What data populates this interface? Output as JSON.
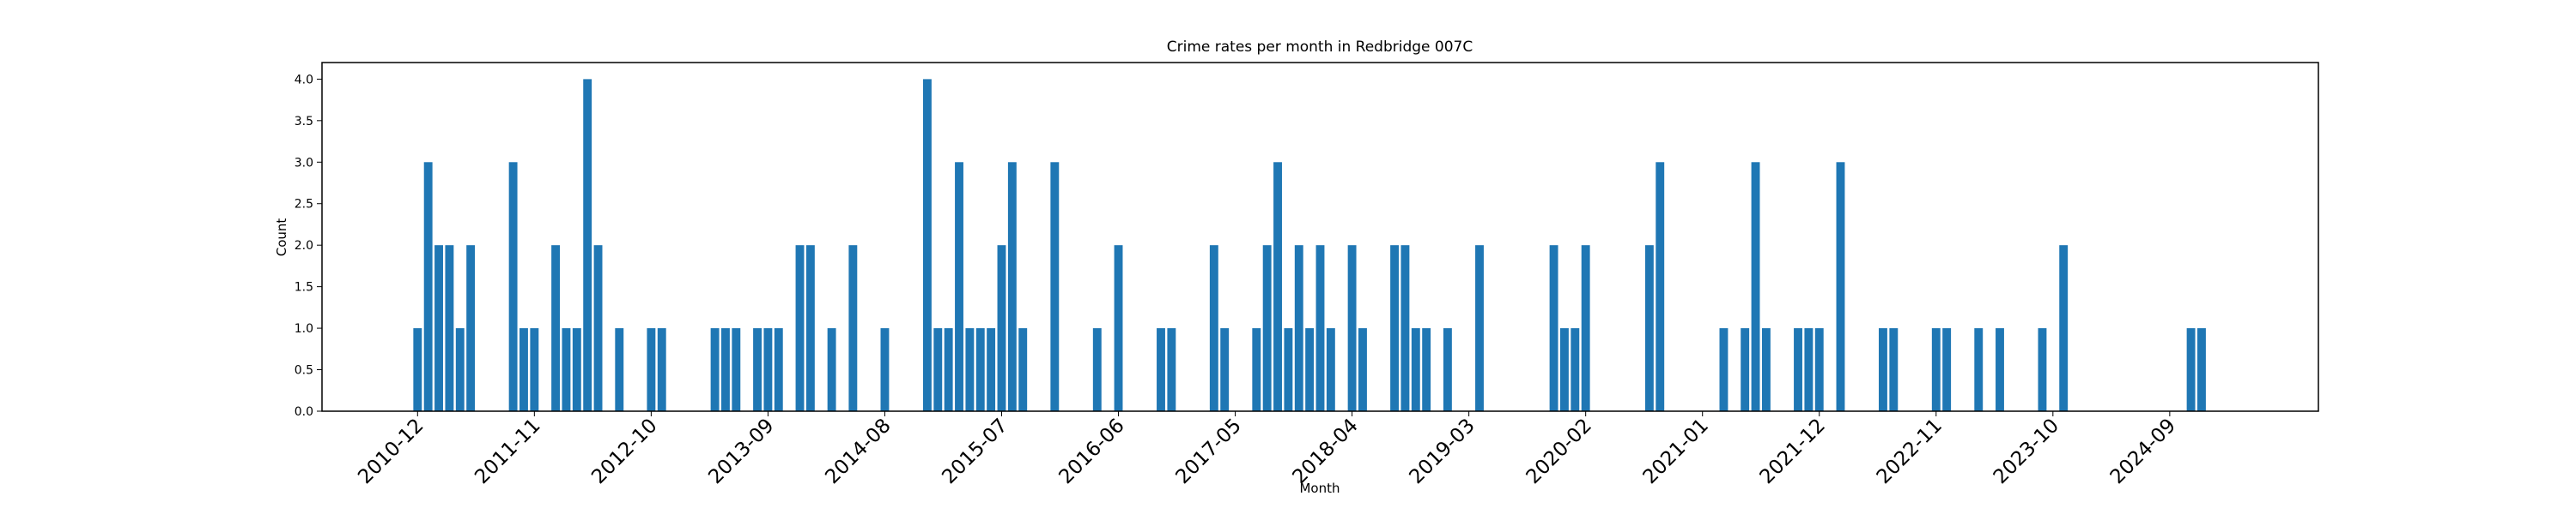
{
  "chart_data": {
    "type": "bar",
    "title": "Crime rates per month in Redbridge 007C",
    "xlabel": "Month",
    "ylabel": "Count",
    "color": "#1f77b4",
    "x": [
      "2010-12",
      "2011-01",
      "2011-02",
      "2011-03",
      "2011-04",
      "2011-05",
      "2011-09",
      "2011-10",
      "2011-11",
      "2012-01",
      "2012-02",
      "2012-03",
      "2012-04",
      "2012-05",
      "2012-07",
      "2012-10",
      "2012-11",
      "2013-04",
      "2013-05",
      "2013-06",
      "2013-08",
      "2013-09",
      "2013-10",
      "2013-12",
      "2014-01",
      "2014-03",
      "2014-05",
      "2014-08",
      "2014-12",
      "2015-01",
      "2015-02",
      "2015-03",
      "2015-04",
      "2015-05",
      "2015-06",
      "2015-07",
      "2015-08",
      "2015-09",
      "2015-12",
      "2016-04",
      "2016-06",
      "2016-10",
      "2016-11",
      "2017-03",
      "2017-04",
      "2017-07",
      "2017-08",
      "2017-09",
      "2017-10",
      "2017-11",
      "2017-12",
      "2018-01",
      "2018-02",
      "2018-04",
      "2018-05",
      "2018-08",
      "2018-09",
      "2018-10",
      "2018-11",
      "2019-01",
      "2019-04",
      "2019-11",
      "2019-12",
      "2020-01",
      "2020-02",
      "2020-08",
      "2020-09",
      "2021-03",
      "2021-05",
      "2021-06",
      "2021-07",
      "2021-10",
      "2021-11",
      "2021-12",
      "2022-02",
      "2022-06",
      "2022-07",
      "2022-11",
      "2022-12",
      "2023-03",
      "2023-05",
      "2023-09",
      "2023-11",
      "2024-11",
      "2024-12"
    ],
    "values": [
      1,
      3,
      2,
      2,
      1,
      2,
      3,
      1,
      1,
      2,
      1,
      1,
      4,
      2,
      1,
      1,
      1,
      1,
      1,
      1,
      1,
      1,
      1,
      2,
      2,
      1,
      2,
      1,
      4,
      1,
      1,
      3,
      1,
      1,
      1,
      2,
      3,
      1,
      3,
      1,
      2,
      1,
      1,
      2,
      1,
      1,
      2,
      3,
      1,
      2,
      1,
      2,
      1,
      2,
      1,
      2,
      2,
      1,
      1,
      1,
      2,
      2,
      1,
      1,
      2,
      2,
      3,
      1,
      1,
      3,
      1,
      1,
      1,
      1,
      3,
      1,
      1,
      1,
      1,
      1,
      1,
      1,
      2,
      1,
      1
    ],
    "xlim": [
      "2010-03",
      "2025-11"
    ],
    "xticks": [
      "2010-12",
      "2011-11",
      "2012-10",
      "2013-09",
      "2014-08",
      "2015-07",
      "2016-06",
      "2017-05",
      "2018-04",
      "2019-03",
      "2020-02",
      "2021-01",
      "2021-12",
      "2022-11",
      "2023-10",
      "2024-09"
    ],
    "ylim": [
      0,
      4.2
    ],
    "yticks": [
      {
        "value": 0,
        "label": "0.0"
      },
      {
        "value": 0.5,
        "label": "0.5"
      },
      {
        "value": 1,
        "label": "1.0"
      },
      {
        "value": 1.5,
        "label": "1.5"
      },
      {
        "value": 2,
        "label": "2.0"
      },
      {
        "value": 2.5,
        "label": "2.5"
      },
      {
        "value": 3,
        "label": "3.0"
      },
      {
        "value": 3.5,
        "label": "3.5"
      },
      {
        "value": 4,
        "label": "4.0"
      }
    ]
  }
}
